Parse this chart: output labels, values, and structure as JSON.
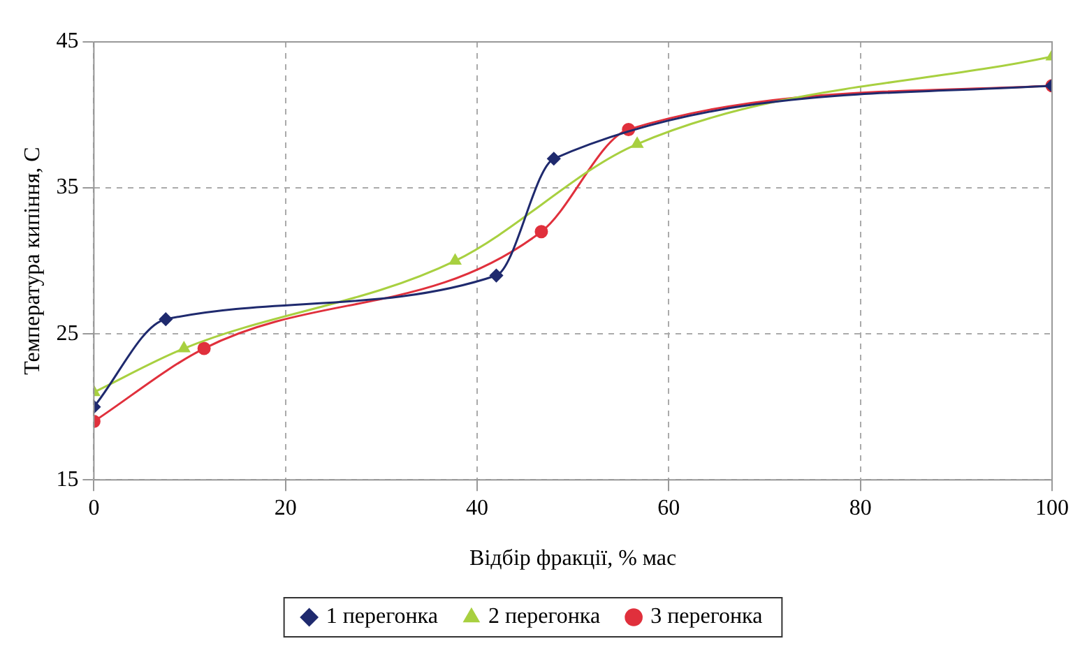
{
  "chart_data": {
    "type": "line",
    "xlabel": "Відбір фракції, % мас",
    "ylabel": "Температура кипіння, С",
    "xlim": [
      0,
      100
    ],
    "xticks": [
      0,
      20,
      40,
      60,
      80,
      100
    ],
    "ylim": [
      15,
      45
    ],
    "yticks": [
      15,
      25,
      35,
      45
    ],
    "grid": true,
    "legend": "bottom",
    "series": [
      {
        "name": "1 перегонка",
        "color": "#1f2a6e",
        "marker": "diamond",
        "x": [
          0,
          7.5,
          42,
          48,
          100
        ],
        "values": [
          20,
          26,
          29,
          37,
          42
        ]
      },
      {
        "name": "2 перегонка",
        "color": "#a8d040",
        "marker": "triangle",
        "x": [
          0,
          9.4,
          37.7,
          56.7,
          100
        ],
        "values": [
          21,
          24,
          30,
          38,
          44
        ]
      },
      {
        "name": "3 перегонка",
        "color": "#e0303c",
        "marker": "circle",
        "x": [
          0,
          11.5,
          46.7,
          55.8,
          100
        ],
        "values": [
          19,
          24,
          32,
          39,
          42
        ]
      }
    ]
  }
}
